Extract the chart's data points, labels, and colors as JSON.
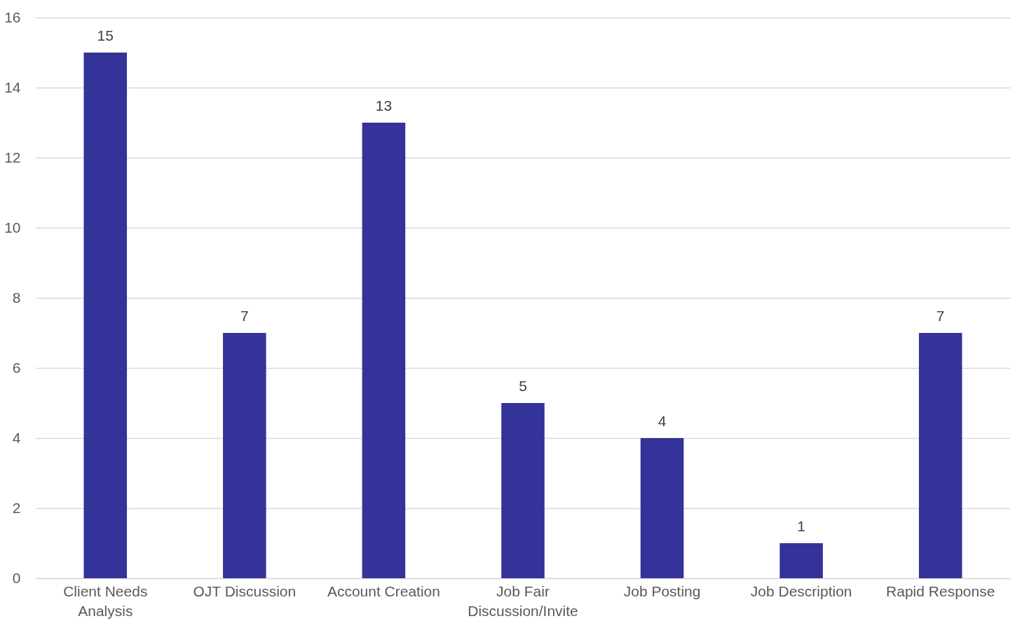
{
  "chart_data": {
    "type": "bar",
    "categories": [
      "Client Needs Analysis",
      "OJT Discussion",
      "Account Creation",
      "Job Fair Discussion/Invite",
      "Job Posting",
      "Job Description",
      "Rapid Response"
    ],
    "values": [
      15,
      7,
      13,
      5,
      4,
      1,
      7
    ],
    "color": "#333399",
    "ylim": [
      0,
      16
    ],
    "yticks": [
      0,
      2,
      4,
      6,
      8,
      10,
      12,
      14,
      16
    ],
    "grid": "y",
    "data_labels": true
  }
}
